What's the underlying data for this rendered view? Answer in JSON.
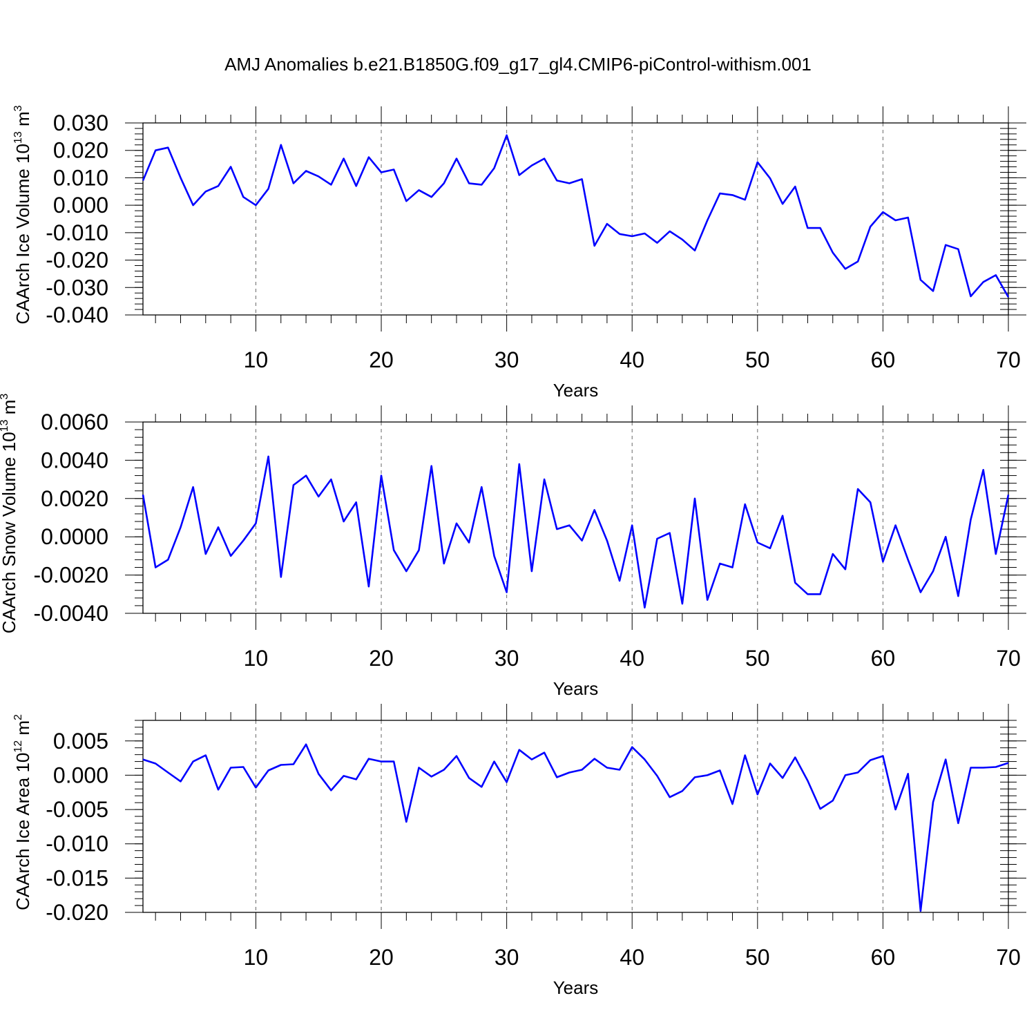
{
  "title": "AMJ Anomalies b.e21.B1850G.f09_g17_gl4.CMIP6-piControl-withism.001",
  "line_color": "#0000ff",
  "chart_data": [
    {
      "type": "line",
      "ylabel": "CAArch Ice Volume 10",
      "ylabel_exp": "13",
      "ylabel_unit": "m",
      "ylabel_unit_exp": "3",
      "xlabel": "Years",
      "xlim": [
        1,
        70
      ],
      "ylim": [
        -0.04,
        0.03
      ],
      "x_ticks": [
        10,
        20,
        30,
        40,
        50,
        60,
        70
      ],
      "y_ticks": [
        0.03,
        0.02,
        0.01,
        0.0,
        -0.01,
        -0.02,
        -0.03,
        -0.04
      ],
      "y_tick_labels": [
        "0.030",
        "0.020",
        "0.010",
        "0.000",
        "-0.010",
        "-0.020",
        "-0.030",
        "-0.040"
      ],
      "y_minor_step": 0.002,
      "grid": "vertical dashed at major x ticks",
      "x": [
        1,
        2,
        3,
        4,
        5,
        6,
        7,
        8,
        9,
        10,
        11,
        12,
        13,
        14,
        15,
        16,
        17,
        18,
        19,
        20,
        21,
        22,
        23,
        24,
        25,
        26,
        27,
        28,
        29,
        30,
        31,
        32,
        33,
        34,
        35,
        36,
        37,
        38,
        39,
        40,
        41,
        42,
        43,
        44,
        45,
        46,
        47,
        48,
        49,
        50,
        51,
        52,
        53,
        54,
        55,
        56,
        57,
        58,
        59,
        60,
        61,
        62,
        63,
        64,
        65,
        66,
        67,
        68,
        69,
        70
      ],
      "values": [
        0.009,
        0.02,
        0.021,
        0.01,
        0.0,
        0.005,
        0.007,
        0.014,
        0.003,
        0.0,
        0.006,
        0.022,
        0.008,
        0.0125,
        0.0105,
        0.0075,
        0.017,
        0.007,
        0.0175,
        0.012,
        0.013,
        0.0015,
        0.0055,
        0.003,
        0.008,
        0.017,
        0.008,
        0.0075,
        0.0135,
        0.0255,
        0.011,
        0.0145,
        0.017,
        0.009,
        0.008,
        0.0095,
        -0.0148,
        -0.0068,
        -0.0105,
        -0.0113,
        -0.0103,
        -0.0137,
        -0.0095,
        -0.0125,
        -0.0165,
        -0.0055,
        0.0043,
        0.0037,
        0.002,
        0.0157,
        0.0098,
        0.0005,
        0.0068,
        -0.0083,
        -0.0083,
        -0.0173,
        -0.0232,
        -0.0205,
        -0.0078,
        -0.0025,
        -0.0055,
        -0.0045,
        -0.0272,
        -0.0313,
        -0.0145,
        -0.016,
        -0.0332,
        -0.028,
        -0.0255,
        -0.0335
      ]
    },
    {
      "type": "line",
      "ylabel": "CAArch Snow Volume 10",
      "ylabel_exp": "13",
      "ylabel_unit": "m",
      "ylabel_unit_exp": "3",
      "xlabel": "Years",
      "xlim": [
        1,
        70
      ],
      "ylim": [
        -0.004,
        0.006
      ],
      "x_ticks": [
        10,
        20,
        30,
        40,
        50,
        60,
        70
      ],
      "y_ticks": [
        0.006,
        0.004,
        0.002,
        0.0,
        -0.002,
        -0.004
      ],
      "y_tick_labels": [
        "0.0060",
        "0.0040",
        "0.0020",
        "0.0000",
        "-0.0020",
        "-0.0040"
      ],
      "y_minor_step": 0.0004,
      "grid": "vertical dashed at major x ticks",
      "x": [
        1,
        2,
        3,
        4,
        5,
        6,
        7,
        8,
        9,
        10,
        11,
        12,
        13,
        14,
        15,
        16,
        17,
        18,
        19,
        20,
        21,
        22,
        23,
        24,
        25,
        26,
        27,
        28,
        29,
        30,
        31,
        32,
        33,
        34,
        35,
        36,
        37,
        38,
        39,
        40,
        41,
        42,
        43,
        44,
        45,
        46,
        47,
        48,
        49,
        50,
        51,
        52,
        53,
        54,
        55,
        56,
        57,
        58,
        59,
        60,
        61,
        62,
        63,
        64,
        65,
        66,
        67,
        68,
        69,
        70
      ],
      "values": [
        0.0022,
        -0.0016,
        -0.0012,
        0.0005,
        0.0026,
        -0.0009,
        0.0005,
        -0.001,
        -0.0002,
        0.0007,
        0.0042,
        -0.0021,
        0.0027,
        0.0032,
        0.0021,
        0.003,
        0.0008,
        0.0018,
        -0.0026,
        0.0032,
        -0.0007,
        -0.0018,
        -0.0007,
        0.0037,
        -0.0014,
        0.0007,
        -0.0003,
        0.0026,
        -0.001,
        -0.0029,
        0.0038,
        -0.0018,
        0.003,
        0.0004,
        0.0006,
        -0.0002,
        0.0014,
        -0.0002,
        -0.0023,
        0.0006,
        -0.0037,
        -0.0001,
        0.0002,
        -0.0035,
        0.002,
        -0.0033,
        -0.0014,
        -0.0016,
        0.0017,
        -0.0003,
        -0.0006,
        0.0011,
        -0.0024,
        -0.003,
        -0.003,
        -0.0009,
        -0.0017,
        0.0025,
        0.0018,
        -0.0013,
        0.0006,
        -0.0012,
        -0.0029,
        -0.0018,
        0.0,
        -0.0031,
        0.0009,
        0.0035,
        -0.0009,
        0.0022
      ]
    },
    {
      "type": "line",
      "ylabel": "CAArch Ice Area 10",
      "ylabel_exp": "12",
      "ylabel_unit": "m",
      "ylabel_unit_exp": "2",
      "xlabel": "Years",
      "xlim": [
        1,
        70
      ],
      "ylim": [
        -0.02,
        0.008
      ],
      "x_ticks": [
        10,
        20,
        30,
        40,
        50,
        60,
        70
      ],
      "y_ticks": [
        0.005,
        0.0,
        -0.005,
        -0.01,
        -0.015,
        -0.02
      ],
      "y_tick_labels": [
        "0.005",
        "0.000",
        "-0.005",
        "-0.010",
        "-0.015",
        "-0.020"
      ],
      "y_minor_step": 0.001,
      "grid": "vertical dashed at major x ticks",
      "x": [
        1,
        2,
        3,
        4,
        5,
        6,
        7,
        8,
        9,
        10,
        11,
        12,
        13,
        14,
        15,
        16,
        17,
        18,
        19,
        20,
        21,
        22,
        23,
        24,
        25,
        26,
        27,
        28,
        29,
        30,
        31,
        32,
        33,
        34,
        35,
        36,
        37,
        38,
        39,
        40,
        41,
        42,
        43,
        44,
        45,
        46,
        47,
        48,
        49,
        50,
        51,
        52,
        53,
        54,
        55,
        56,
        57,
        58,
        59,
        60,
        61,
        62,
        63,
        64,
        65,
        66,
        67,
        68,
        69,
        70
      ],
      "values": [
        0.0023,
        0.0017,
        0.0004,
        -0.0009,
        0.002,
        0.0029,
        -0.0021,
        0.0011,
        0.0012,
        -0.0018,
        0.0007,
        0.0015,
        0.0016,
        0.0045,
        0.0002,
        -0.0022,
        -0.0001,
        -0.0006,
        0.0024,
        0.002,
        0.002,
        -0.0068,
        0.0011,
        -0.0002,
        0.0008,
        0.0028,
        -0.0004,
        -0.0017,
        0.002,
        -0.001,
        0.0037,
        0.0023,
        0.0033,
        -0.0003,
        0.0004,
        0.0008,
        0.0024,
        0.0011,
        0.0008,
        0.0041,
        0.0023,
        -0.0001,
        -0.0032,
        -0.0023,
        -0.0003,
        0.0,
        0.0007,
        -0.0042,
        0.0029,
        -0.0028,
        0.0017,
        -0.0004,
        0.0026,
        -0.0008,
        -0.0049,
        -0.0037,
        0.0,
        0.0004,
        0.0022,
        0.0028,
        -0.005,
        0.0002,
        -0.0198,
        -0.0039,
        0.0023,
        -0.007,
        0.0011,
        0.0011,
        0.0012,
        0.0018
      ]
    }
  ]
}
